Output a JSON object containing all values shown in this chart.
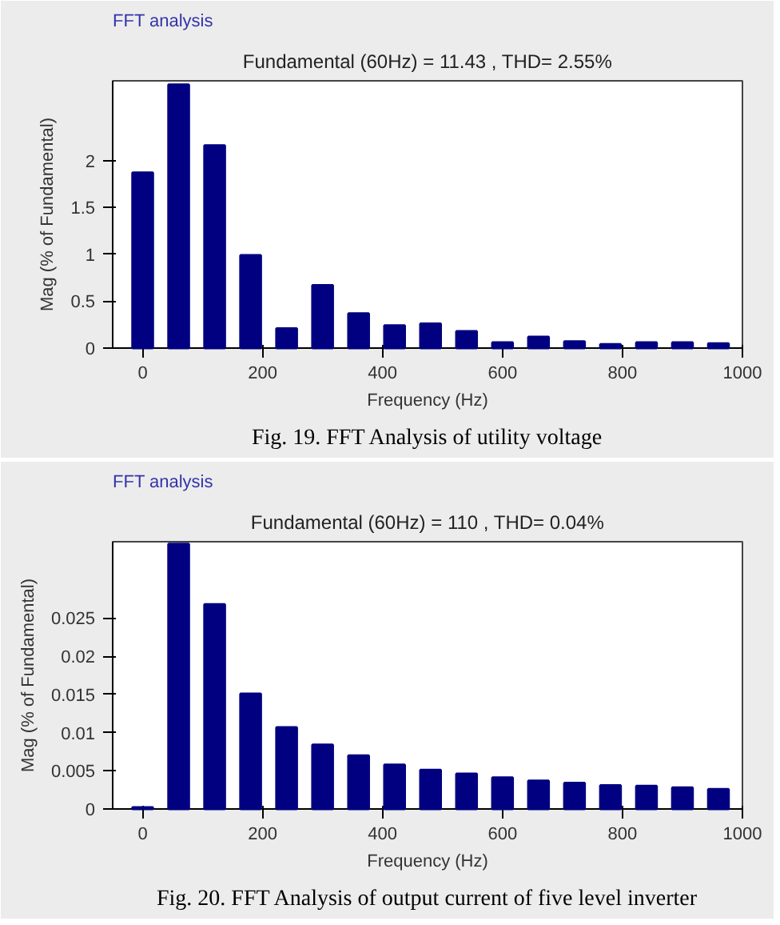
{
  "chart_data": [
    {
      "type": "bar",
      "title": "Fundamental (60Hz) = 11.43 , THD= 2.55%",
      "xlabel": "Frequency (Hz)",
      "ylabel": "Mag (% of Fundamental)",
      "color": "#000080",
      "grid": false,
      "x": [
        0,
        60,
        120,
        180,
        240,
        300,
        360,
        420,
        480,
        540,
        600,
        660,
        720,
        780,
        840,
        900,
        960
      ],
      "values": [
        1.87,
        2.81,
        2.16,
        0.99,
        0.21,
        0.67,
        0.37,
        0.24,
        0.26,
        0.18,
        0.06,
        0.12,
        0.07,
        0.04,
        0.06,
        0.06,
        0.05
      ],
      "xlim": [
        -50,
        1000
      ],
      "xticks": [
        0,
        200,
        400,
        600,
        800,
        1000
      ],
      "ylim": [
        0,
        2.85
      ],
      "yticks": [
        0,
        0.5,
        1,
        1.5,
        2
      ],
      "annotations": [
        "FFT analysis",
        "Fig. 19. FFT Analysis of utility voltage"
      ]
    },
    {
      "type": "bar",
      "title": "Fundamental (60Hz) = 110 , THD= 0.04%",
      "xlabel": "Frequency (Hz)",
      "ylabel": "Mag (% of Fundamental)",
      "color": "#000080",
      "grid": false,
      "x": [
        0,
        60,
        120,
        180,
        240,
        300,
        360,
        420,
        480,
        540,
        600,
        660,
        720,
        780,
        840,
        900,
        960
      ],
      "values": [
        0.0002,
        0.0347,
        0.0268,
        0.0151,
        0.0107,
        0.0084,
        0.007,
        0.0058,
        0.0051,
        0.0046,
        0.0041,
        0.0037,
        0.0034,
        0.0031,
        0.003,
        0.0028,
        0.0026
      ],
      "xlim": [
        -50,
        1000
      ],
      "xticks": [
        0,
        200,
        400,
        600,
        800,
        1000
      ],
      "ylim": [
        0,
        0.035
      ],
      "yticks": [
        0,
        0.005,
        0.01,
        0.015,
        0.02,
        0.025
      ],
      "annotations": [
        "FFT analysis",
        "Fig. 20. FFT Analysis of output current of five level inverter"
      ]
    }
  ]
}
